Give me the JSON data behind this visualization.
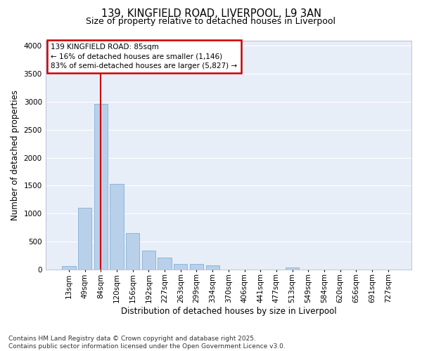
{
  "title": "139, KINGFIELD ROAD, LIVERPOOL, L9 3AN",
  "subtitle": "Size of property relative to detached houses in Liverpool",
  "xlabel": "Distribution of detached houses by size in Liverpool",
  "ylabel": "Number of detached properties",
  "bar_color": "#b8d0ea",
  "bar_edge_color": "#88afd4",
  "bg_color": "#e8eef8",
  "grid_color": "#ffffff",
  "vline_color": "#cc0000",
  "vline_x_index": 2,
  "annotation_line1": "139 KINGFIELD ROAD: 85sqm",
  "annotation_line2": "← 16% of detached houses are smaller (1,146)",
  "annotation_line3": "83% of semi-detached houses are larger (5,827) →",
  "annotation_box_color": "#cc0000",
  "categories": [
    "13sqm",
    "49sqm",
    "84sqm",
    "120sqm",
    "156sqm",
    "192sqm",
    "227sqm",
    "263sqm",
    "299sqm",
    "334sqm",
    "370sqm",
    "406sqm",
    "441sqm",
    "477sqm",
    "513sqm",
    "549sqm",
    "584sqm",
    "620sqm",
    "656sqm",
    "691sqm",
    "727sqm"
  ],
  "values": [
    55,
    1100,
    2960,
    1530,
    650,
    340,
    205,
    100,
    100,
    70,
    0,
    0,
    0,
    0,
    35,
    0,
    0,
    0,
    0,
    0,
    0
  ],
  "ylim": [
    0,
    4100
  ],
  "yticks": [
    0,
    500,
    1000,
    1500,
    2000,
    2500,
    3000,
    3500,
    4000
  ],
  "footer": "Contains HM Land Registry data © Crown copyright and database right 2025.\nContains public sector information licensed under the Open Government Licence v3.0.",
  "footer_fontsize": 6.5,
  "title_fontsize": 10.5,
  "subtitle_fontsize": 9,
  "xlabel_fontsize": 8.5,
  "ylabel_fontsize": 8.5,
  "tick_fontsize": 7.5
}
